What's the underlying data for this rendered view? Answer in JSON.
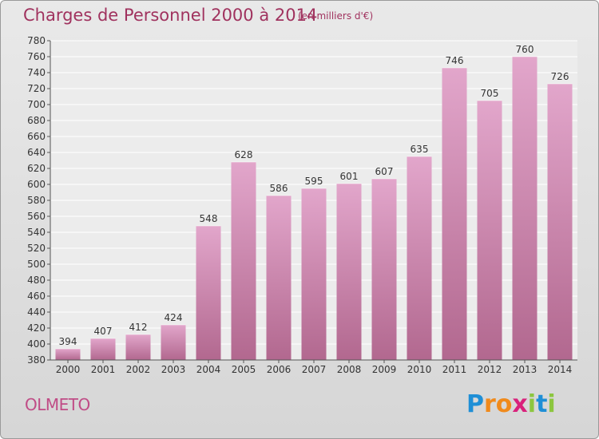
{
  "chart_data": {
    "type": "bar",
    "title": "Charges de Personnel 2000 à 2014",
    "subtitle": "(en milliers d'€)",
    "categories": [
      "2000",
      "2001",
      "2002",
      "2003",
      "2004",
      "2005",
      "2006",
      "2007",
      "2008",
      "2009",
      "2010",
      "2011",
      "2012",
      "2013",
      "2014"
    ],
    "values": [
      394,
      407,
      412,
      424,
      548,
      628,
      586,
      595,
      601,
      607,
      635,
      746,
      705,
      760,
      726
    ],
    "ylim": [
      380,
      780
    ],
    "yticks": [
      380,
      400,
      420,
      440,
      460,
      480,
      500,
      520,
      540,
      560,
      580,
      600,
      620,
      640,
      660,
      680,
      700,
      720,
      740,
      760,
      780
    ],
    "grid": true,
    "bar_color_top": "#e2a6cb",
    "bar_color_bottom": "#b2688f"
  },
  "commune": "OLMETO",
  "logo": {
    "text": "Proxiti",
    "letters": [
      {
        "ch": "P",
        "color": "#1f8fd6"
      },
      {
        "ch": "r",
        "color": "#f08a1c"
      },
      {
        "ch": "o",
        "color": "#f08a1c"
      },
      {
        "ch": "x",
        "color": "#d9217b"
      },
      {
        "ch": "i",
        "color": "#8cc63f"
      },
      {
        "ch": "t",
        "color": "#1f8fd6"
      },
      {
        "ch": "i",
        "color": "#8cc63f"
      }
    ]
  }
}
